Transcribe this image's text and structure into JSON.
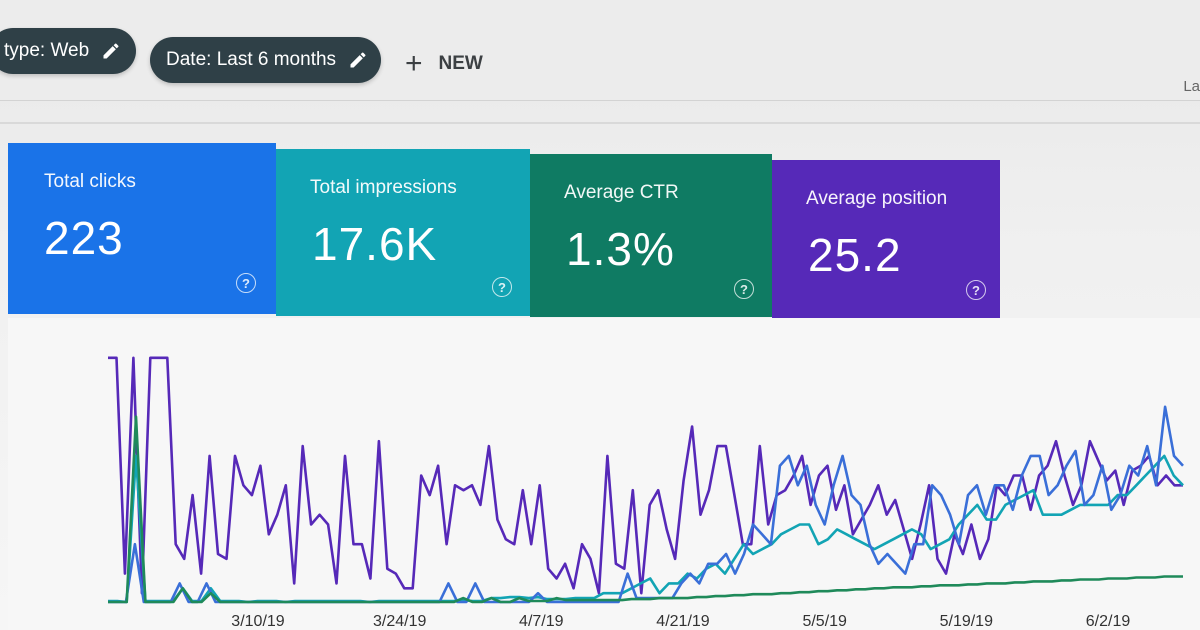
{
  "filters": {
    "type_chip": "type: Web",
    "date_chip": "Date: Last 6 months",
    "new_label": "NEW"
  },
  "corner_text": "La",
  "cards": [
    {
      "label": "Total clicks",
      "value": "223",
      "color": "#1a73e8"
    },
    {
      "label": "Total impressions",
      "value": "17.6K",
      "color": "#12a4b4"
    },
    {
      "label": "Average CTR",
      "value": "1.3%",
      "color": "#0f7b63"
    },
    {
      "label": "Average position",
      "value": "25.2",
      "color": "#5629b8"
    }
  ],
  "chart_data": {
    "type": "line",
    "x_tick_labels": [
      "3/10/19",
      "3/24/19",
      "4/7/19",
      "4/21/19",
      "5/5/19",
      "5/19/19",
      "6/2/19"
    ],
    "series": [
      {
        "color": "#5629b8",
        "values": [
          250,
          250,
          30,
          250,
          10,
          250,
          250,
          250,
          60,
          45,
          110,
          30,
          150,
          50,
          45,
          150,
          120,
          110,
          140,
          70,
          90,
          120,
          20,
          160,
          80,
          90,
          80,
          20,
          150,
          60,
          60,
          25,
          165,
          35,
          30,
          15,
          15,
          130,
          110,
          140,
          60,
          120,
          115,
          120,
          100,
          160,
          85,
          65,
          60,
          115,
          60,
          120,
          35,
          25,
          40,
          15,
          60,
          45,
          10,
          150,
          40,
          35,
          115,
          10,
          100,
          115,
          75,
          45,
          125,
          180,
          90,
          115,
          160,
          160,
          110,
          60,
          60,
          160,
          80,
          110,
          115,
          130,
          150,
          100,
          130,
          140,
          95,
          120,
          70,
          85,
          100,
          120,
          90,
          105,
          75,
          45,
          80,
          120,
          45,
          30,
          70,
          50,
          80,
          45,
          65,
          120,
          110,
          130,
          130,
          95,
          130,
          140,
          165,
          130,
          100,
          120,
          165,
          145,
          125,
          135,
          100,
          135,
          140,
          150,
          120,
          130,
          120,
          120
        ]
      },
      {
        "color": "#12a4b4",
        "values": [
          2,
          2,
          1,
          150,
          2,
          2,
          2,
          2,
          15,
          2,
          2,
          15,
          2,
          2,
          2,
          1,
          2,
          2,
          2,
          1,
          2,
          2,
          2,
          2,
          2,
          2,
          2,
          2,
          1,
          2,
          2,
          2,
          2,
          2,
          2,
          2,
          2,
          2,
          3,
          2,
          2,
          5,
          5,
          6,
          6,
          5,
          6,
          4,
          4,
          4,
          5,
          5,
          5,
          10,
          10,
          10,
          15,
          20,
          25,
          10,
          20,
          20,
          30,
          25,
          35,
          40,
          30,
          45,
          60,
          50,
          55,
          60,
          70,
          75,
          80,
          80,
          60,
          65,
          75,
          70,
          65,
          60,
          55,
          60,
          65,
          70,
          75,
          70,
          55,
          60,
          65,
          80,
          90,
          100,
          85,
          85,
          100,
          105,
          110,
          115,
          90,
          90,
          90,
          95,
          100,
          100,
          100,
          100,
          110,
          110,
          120,
          130,
          140,
          150,
          130,
          120
        ]
      },
      {
        "color": "#3a6fd8",
        "values": [
          1,
          1,
          1,
          60,
          1,
          1,
          1,
          1,
          20,
          1,
          1,
          20,
          1,
          1,
          1,
          1,
          1,
          1,
          1,
          1,
          1,
          1,
          1,
          1,
          1,
          1,
          1,
          1,
          1,
          1,
          1,
          1,
          1,
          1,
          1,
          1,
          1,
          1,
          20,
          1,
          1,
          20,
          1,
          1,
          1,
          1,
          1,
          1,
          10,
          1,
          1,
          1,
          1,
          1,
          1,
          1,
          1,
          1,
          30,
          5,
          5,
          5,
          5,
          5,
          20,
          30,
          20,
          40,
          40,
          50,
          30,
          50,
          80,
          70,
          60,
          140,
          150,
          120,
          140,
          100,
          80,
          120,
          150,
          110,
          100,
          60,
          40,
          50,
          40,
          30,
          60,
          60,
          120,
          110,
          90,
          60,
          110,
          120,
          90,
          120,
          120,
          95,
          130,
          150,
          150,
          110,
          120,
          140,
          155,
          100,
          110,
          140,
          95,
          110,
          140,
          130,
          160,
          120,
          200,
          150,
          140
        ]
      },
      {
        "color": "#1f8a5a",
        "values": [
          1,
          1,
          1,
          190,
          1,
          1,
          1,
          1,
          15,
          1,
          1,
          10,
          1,
          1,
          1,
          1,
          1,
          1,
          1,
          1,
          1,
          1,
          1,
          1,
          1,
          1,
          1,
          1,
          1,
          1,
          1,
          1,
          1,
          1,
          1,
          1,
          1,
          1,
          5,
          1,
          1,
          5,
          1,
          1,
          5,
          2,
          2,
          2,
          5,
          3,
          3,
          3,
          3,
          3,
          3,
          3,
          4,
          4,
          4,
          5,
          5,
          5,
          5,
          6,
          6,
          7,
          7,
          8,
          8,
          9,
          9,
          9,
          10,
          10,
          11,
          11,
          12,
          12,
          13,
          13,
          14,
          14,
          15,
          15,
          16,
          16,
          16,
          17,
          17,
          18,
          18,
          18,
          19,
          19,
          20,
          20,
          20,
          21,
          21,
          22,
          22,
          22,
          23,
          23,
          24,
          24,
          24,
          25,
          25,
          25,
          26,
          26,
          26,
          27,
          27,
          27
        ]
      }
    ],
    "ylim": [
      0,
      260
    ],
    "grid": false,
    "legend": "none"
  }
}
